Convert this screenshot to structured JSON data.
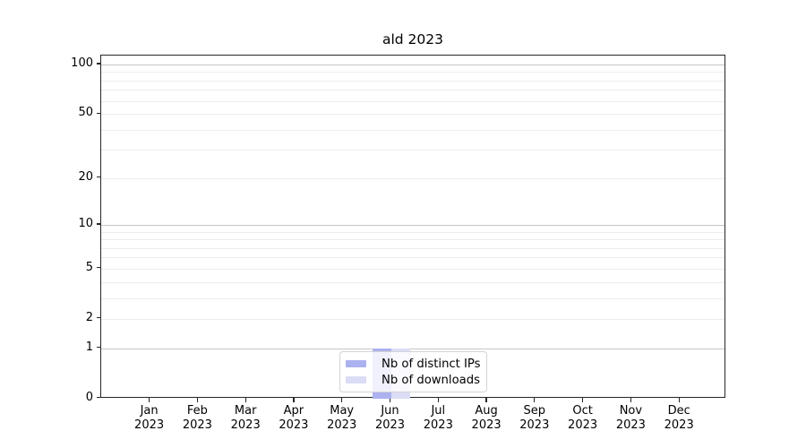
{
  "title": "ald 2023",
  "chart_data": {
    "type": "bar",
    "title": "ald 2023",
    "categories": [
      "Jan 2023",
      "Feb 2023",
      "Mar 2023",
      "Apr 2023",
      "May 2023",
      "Jun 2023",
      "Jul 2023",
      "Aug 2023",
      "Sep 2023",
      "Oct 2023",
      "Nov 2023",
      "Dec 2023"
    ],
    "series": [
      {
        "name": "Nb of distinct IPs",
        "color": "#acb1ef",
        "values": [
          0,
          0,
          0,
          0,
          0,
          1,
          0,
          0,
          0,
          0,
          0,
          0
        ]
      },
      {
        "name": "Nb of downloads",
        "color": "#dbddf6",
        "values": [
          0,
          0,
          0,
          0,
          0,
          1,
          0,
          0,
          0,
          0,
          0,
          0
        ]
      }
    ],
    "yscale": "symlog",
    "yticks": [
      0,
      1,
      2,
      5,
      10,
      20,
      50,
      100
    ],
    "ylim": [
      0,
      113
    ],
    "y_gridlines": {
      "major": [
        1,
        10,
        100
      ],
      "minor": [
        2,
        3,
        4,
        5,
        6,
        7,
        8,
        9,
        20,
        30,
        40,
        50,
        60,
        70,
        80,
        90
      ]
    },
    "xlabel": "",
    "ylabel": "",
    "grid": true,
    "legend_position": "bottom-center"
  },
  "colors": {
    "axis": "#262626",
    "grid_major": "#c6c6c6",
    "grid_minor": "#ececec",
    "legend_border": "#d4d4d4",
    "text": "#000000"
  }
}
